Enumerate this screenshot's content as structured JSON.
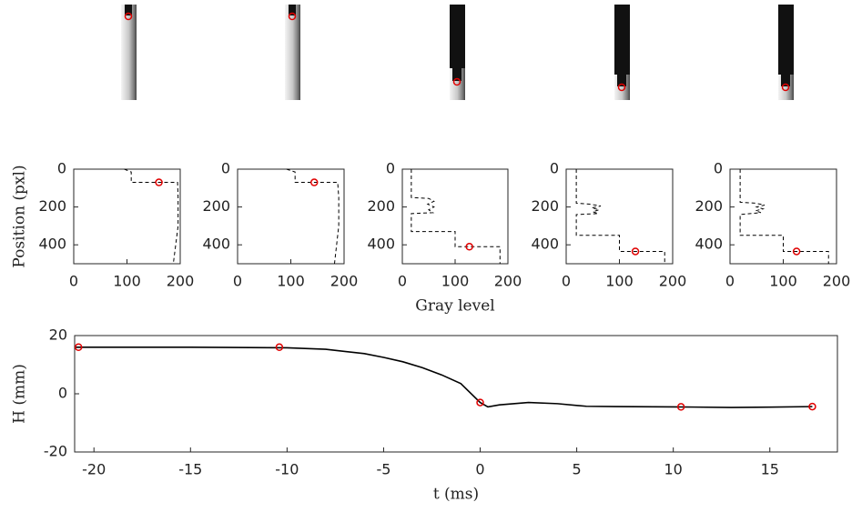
{
  "chart_data": [
    {
      "type": "line",
      "ylabel": "Position (pxl)",
      "xlim": [
        0,
        200
      ],
      "ylim": [
        0,
        500
      ],
      "y_reversed": true,
      "xticks": [
        0,
        100,
        200
      ],
      "yticks": [
        0,
        200,
        400
      ],
      "series": [
        {
          "color": "#000000",
          "dash": true,
          "x": [
            95,
            108,
            108,
            195,
            196,
            196,
            187
          ],
          "values": [
            0,
            15,
            70,
            70,
            150,
            300,
            500
          ]
        },
        {
          "color": "#e00000",
          "marker": "circle",
          "x": [
            160
          ],
          "values": [
            70
          ]
        }
      ]
    },
    {
      "type": "line",
      "xlim": [
        0,
        200
      ],
      "ylim": [
        0,
        500
      ],
      "y_reversed": true,
      "xticks": [
        0,
        100,
        200
      ],
      "yticks": [
        0,
        200,
        400
      ],
      "series": [
        {
          "color": "#000000",
          "dash": true,
          "x": [
            92,
            108,
            108,
            188,
            190,
            190,
            182
          ],
          "values": [
            0,
            15,
            70,
            70,
            150,
            300,
            500
          ]
        },
        {
          "color": "#e00000",
          "marker": "circle",
          "x": [
            144
          ],
          "values": [
            70
          ]
        }
      ]
    },
    {
      "type": "line",
      "xlabel": "Gray level",
      "xlim": [
        0,
        200
      ],
      "ylim": [
        0,
        500
      ],
      "y_reversed": true,
      "xticks": [
        0,
        100,
        200
      ],
      "yticks": [
        0,
        200,
        400
      ],
      "series": [
        {
          "color": "#000000",
          "dash": true,
          "x": [
            17,
            17,
            50,
            60,
            48,
            60,
            50,
            58,
            17,
            17,
            100,
            100,
            185,
            185
          ],
          "values": [
            0,
            150,
            155,
            170,
            185,
            200,
            215,
            230,
            235,
            330,
            330,
            410,
            410,
            500
          ]
        },
        {
          "color": "#e00000",
          "marker": "circle",
          "x": [
            127
          ],
          "values": [
            410
          ]
        }
      ]
    },
    {
      "type": "line",
      "xlim": [
        0,
        200
      ],
      "ylim": [
        0,
        500
      ],
      "y_reversed": true,
      "xticks": [
        0,
        100,
        200
      ],
      "yticks": [
        0,
        200,
        400
      ],
      "series": [
        {
          "color": "#000000",
          "dash": true,
          "x": [
            19,
            19,
            45,
            65,
            48,
            62,
            50,
            60,
            19,
            19,
            100,
            100,
            185,
            185
          ],
          "values": [
            0,
            180,
            185,
            195,
            205,
            215,
            225,
            235,
            240,
            350,
            350,
            435,
            435,
            500
          ]
        },
        {
          "color": "#e00000",
          "marker": "circle",
          "x": [
            130
          ],
          "values": [
            435
          ]
        }
      ]
    },
    {
      "type": "line",
      "xlim": [
        0,
        200
      ],
      "ylim": [
        0,
        500
      ],
      "y_reversed": true,
      "xticks": [
        0,
        100,
        200
      ],
      "yticks": [
        0,
        200,
        400
      ],
      "series": [
        {
          "color": "#000000",
          "dash": true,
          "x": [
            19,
            19,
            48,
            65,
            50,
            62,
            48,
            58,
            19,
            19,
            100,
            100,
            185,
            185
          ],
          "values": [
            0,
            175,
            180,
            190,
            200,
            210,
            220,
            230,
            240,
            350,
            350,
            435,
            435,
            500
          ]
        },
        {
          "color": "#e00000",
          "marker": "circle",
          "x": [
            125
          ],
          "values": [
            435
          ]
        }
      ]
    },
    {
      "type": "line",
      "xlabel": "t (ms)",
      "ylabel": "H (mm)",
      "xlim": [
        -21,
        18.5
      ],
      "ylim": [
        -20,
        20
      ],
      "xticks": [
        -20,
        -15,
        -10,
        -5,
        0,
        5,
        10,
        15
      ],
      "yticks": [
        -20,
        0,
        20
      ],
      "series": [
        {
          "color": "#000000",
          "x": [
            -21,
            -15,
            -10,
            -8,
            -6,
            -5,
            -4,
            -3,
            -2,
            -1,
            0,
            0.4,
            1,
            2.5,
            4,
            5.5,
            7,
            10,
            13,
            15,
            17.2
          ],
          "values": [
            16,
            16,
            15.8,
            15.3,
            13.8,
            12.5,
            11,
            9,
            6.5,
            3.5,
            -3,
            -4.5,
            -3.8,
            -3,
            -3.4,
            -4.3,
            -4.4,
            -4.5,
            -4.7,
            -4.6,
            -4.4
          ]
        },
        {
          "color": "#e00000",
          "marker": "circle",
          "x": [
            -20.8,
            -10.4,
            0,
            10.4,
            17.2
          ],
          "values": [
            16,
            16,
            -3,
            -4.5,
            -4.4
          ]
        }
      ]
    }
  ]
}
